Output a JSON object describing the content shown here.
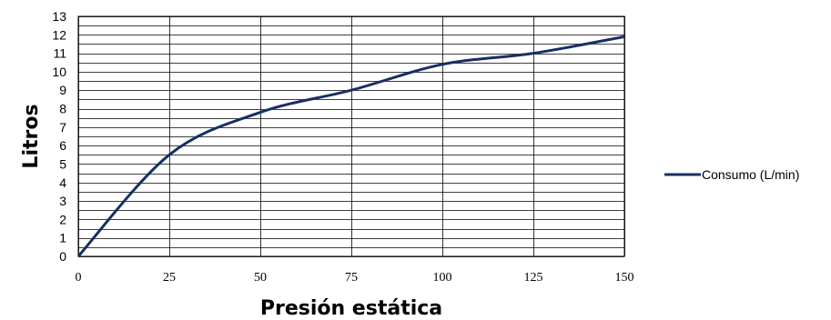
{
  "chart_data": {
    "type": "line",
    "title": "",
    "xlabel": "Presión estática",
    "ylabel": "Litros",
    "xlim": [
      0,
      150
    ],
    "ylim": [
      0,
      13
    ],
    "xticks": [
      "0",
      "25",
      "50",
      "75",
      "100",
      "125",
      "150"
    ],
    "yticks": [
      "0",
      "1",
      "2",
      "3",
      "4",
      "5",
      "6",
      "7",
      "8",
      "9",
      "10",
      "11",
      "12",
      "13"
    ],
    "y_minor_step": 0.5,
    "grid": true,
    "legend": "right",
    "series": [
      {
        "name": "Consumo (L/min)",
        "color": "#172f63",
        "x": [
          0,
          25,
          50,
          75,
          100,
          125,
          150
        ],
        "y": [
          0,
          5.5,
          7.8,
          9.0,
          10.4,
          11.0,
          11.9
        ]
      }
    ]
  }
}
